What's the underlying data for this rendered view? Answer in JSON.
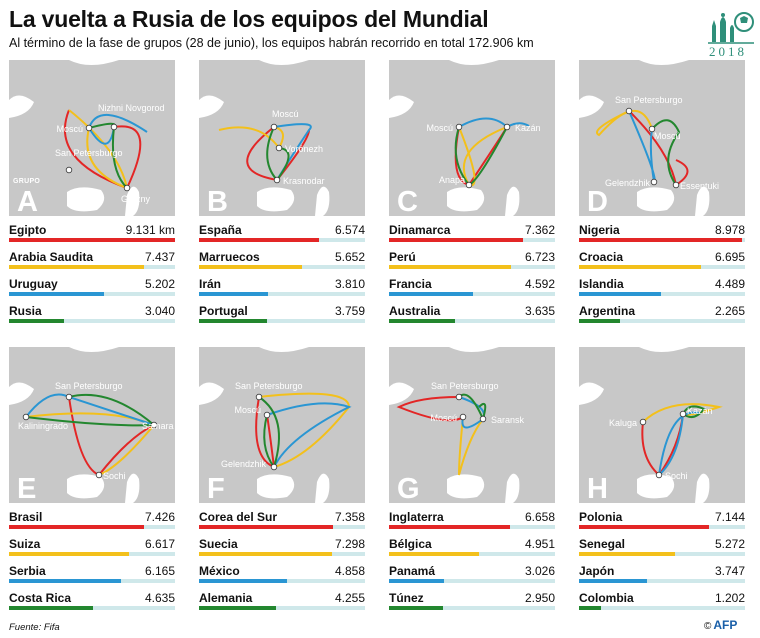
{
  "title": "La vuelta a Rusia de los equipos del Mundial",
  "subtitle": "Al término de la fase de grupos (28 de junio), los equipos habrán recorrido en total 172.906 km",
  "logo_year": "2018",
  "source": "Fuente: Fifa",
  "credit": "AFP",
  "copyright": "©",
  "grupo_word": "GRUPO",
  "colors": {
    "red": "#e32626",
    "yellow": "#f3c01b",
    "blue": "#2a96d3",
    "green": "#23872f",
    "track": "#cfe8ea",
    "map": "#d2d2d2"
  },
  "groups": [
    {
      "label": "A",
      "cities": [
        "San Petersburgo",
        "Nizhni Novgorod",
        "Moscú",
        "Grozny"
      ],
      "teams": [
        {
          "name": "Egipto",
          "km": "9.131 km",
          "value": 9131,
          "color": "red"
        },
        {
          "name": "Arabia Saudita",
          "km": "7.437",
          "value": 7437,
          "color": "yellow"
        },
        {
          "name": "Uruguay",
          "km": "5.202",
          "value": 5202,
          "color": "blue"
        },
        {
          "name": "Rusia",
          "km": "3.040",
          "value": 3040,
          "color": "green"
        }
      ]
    },
    {
      "label": "B",
      "cities": [
        "Moscú",
        "Vorónezh",
        "Krasnodar"
      ],
      "teams": [
        {
          "name": "España",
          "km": "6.574",
          "value": 6574,
          "color": "red"
        },
        {
          "name": "Marruecos",
          "km": "5.652",
          "value": 5652,
          "color": "yellow"
        },
        {
          "name": "Irán",
          "km": "3.810",
          "value": 3810,
          "color": "blue"
        },
        {
          "name": "Portugal",
          "km": "3.759",
          "value": 3759,
          "color": "green"
        }
      ]
    },
    {
      "label": "C",
      "cities": [
        "Moscú",
        "Kazán",
        "Anapa"
      ],
      "teams": [
        {
          "name": "Dinamarca",
          "km": "7.362",
          "value": 7362,
          "color": "red"
        },
        {
          "name": "Perú",
          "km": "6.723",
          "value": 6723,
          "color": "yellow"
        },
        {
          "name": "Francia",
          "km": "4.592",
          "value": 4592,
          "color": "blue"
        },
        {
          "name": "Australia",
          "km": "3.635",
          "value": 3635,
          "color": "green"
        }
      ]
    },
    {
      "label": "D",
      "cities": [
        "San Petersburgo",
        "Moscú",
        "Gelendzhik",
        "Essentuki"
      ],
      "teams": [
        {
          "name": "Nigeria",
          "km": "8.978",
          "value": 8978,
          "color": "red"
        },
        {
          "name": "Croacia",
          "km": "6.695",
          "value": 6695,
          "color": "yellow"
        },
        {
          "name": "Islandia",
          "km": "4.489",
          "value": 4489,
          "color": "blue"
        },
        {
          "name": "Argentina",
          "km": "2.265",
          "value": 2265,
          "color": "green"
        }
      ]
    },
    {
      "label": "E",
      "cities": [
        "San Petersburgo",
        "Kaliningrado",
        "Samara",
        "Sochi"
      ],
      "teams": [
        {
          "name": "Brasil",
          "km": "7.426",
          "value": 7426,
          "color": "red"
        },
        {
          "name": "Suiza",
          "km": "6.617",
          "value": 6617,
          "color": "yellow"
        },
        {
          "name": "Serbia",
          "km": "6.165",
          "value": 6165,
          "color": "blue"
        },
        {
          "name": "Costa Rica",
          "km": "4.635",
          "value": 4635,
          "color": "green"
        }
      ]
    },
    {
      "label": "F",
      "cities": [
        "San Petersburgo",
        "Moscú",
        "Gelendzhik"
      ],
      "teams": [
        {
          "name": "Corea del Sur",
          "km": "7.358",
          "value": 7358,
          "color": "red"
        },
        {
          "name": "Suecia",
          "km": "7.298",
          "value": 7298,
          "color": "yellow"
        },
        {
          "name": "México",
          "km": "4.858",
          "value": 4858,
          "color": "blue"
        },
        {
          "name": "Alemania",
          "km": "4.255",
          "value": 4255,
          "color": "green"
        }
      ]
    },
    {
      "label": "G",
      "cities": [
        "San Petersburgo",
        "Moscú",
        "Saransk"
      ],
      "teams": [
        {
          "name": "Inglaterra",
          "km": "6.658",
          "value": 6658,
          "color": "red"
        },
        {
          "name": "Bélgica",
          "km": "4.951",
          "value": 4951,
          "color": "yellow"
        },
        {
          "name": "Panamá",
          "km": "3.026",
          "value": 3026,
          "color": "blue"
        },
        {
          "name": "Túnez",
          "km": "2.950",
          "value": 2950,
          "color": "green"
        }
      ]
    },
    {
      "label": "H",
      "cities": [
        "Kaluga",
        "Kazán",
        "Sochi"
      ],
      "teams": [
        {
          "name": "Polonia",
          "km": "7.144",
          "value": 7144,
          "color": "red"
        },
        {
          "name": "Senegal",
          "km": "5.272",
          "value": 5272,
          "color": "yellow"
        },
        {
          "name": "Japón",
          "km": "3.747",
          "value": 3747,
          "color": "blue"
        },
        {
          "name": "Colombia",
          "km": "1.202",
          "value": 1202,
          "color": "green"
        }
      ]
    }
  ],
  "chart_data": {
    "type": "bar",
    "title": "La vuelta a Rusia de los equipos del Mundial",
    "xlim": [
      0,
      9131
    ],
    "panels": [
      {
        "group": "A",
        "categories": [
          "Egipto",
          "Arabia Saudita",
          "Uruguay",
          "Rusia"
        ],
        "values": [
          9131,
          7437,
          5202,
          3040
        ]
      },
      {
        "group": "B",
        "categories": [
          "España",
          "Marruecos",
          "Irán",
          "Portugal"
        ],
        "values": [
          6574,
          5652,
          3810,
          3759
        ]
      },
      {
        "group": "C",
        "categories": [
          "Dinamarca",
          "Perú",
          "Francia",
          "Australia"
        ],
        "values": [
          7362,
          6723,
          4592,
          3635
        ]
      },
      {
        "group": "D",
        "categories": [
          "Nigeria",
          "Croacia",
          "Islandia",
          "Argentina"
        ],
        "values": [
          8978,
          6695,
          4489,
          2265
        ]
      },
      {
        "group": "E",
        "categories": [
          "Brasil",
          "Suiza",
          "Serbia",
          "Costa Rica"
        ],
        "values": [
          7426,
          6617,
          6165,
          4635
        ]
      },
      {
        "group": "F",
        "categories": [
          "Corea del Sur",
          "Suecia",
          "México",
          "Alemania"
        ],
        "values": [
          7358,
          7298,
          4858,
          4255
        ]
      },
      {
        "group": "G",
        "categories": [
          "Inglaterra",
          "Bélgica",
          "Panamá",
          "Túnez"
        ],
        "values": [
          6658,
          4951,
          3026,
          2950
        ]
      },
      {
        "group": "H",
        "categories": [
          "Polonia",
          "Senegal",
          "Japón",
          "Colombia"
        ],
        "values": [
          7144,
          5272,
          3747,
          1202
        ]
      }
    ]
  }
}
